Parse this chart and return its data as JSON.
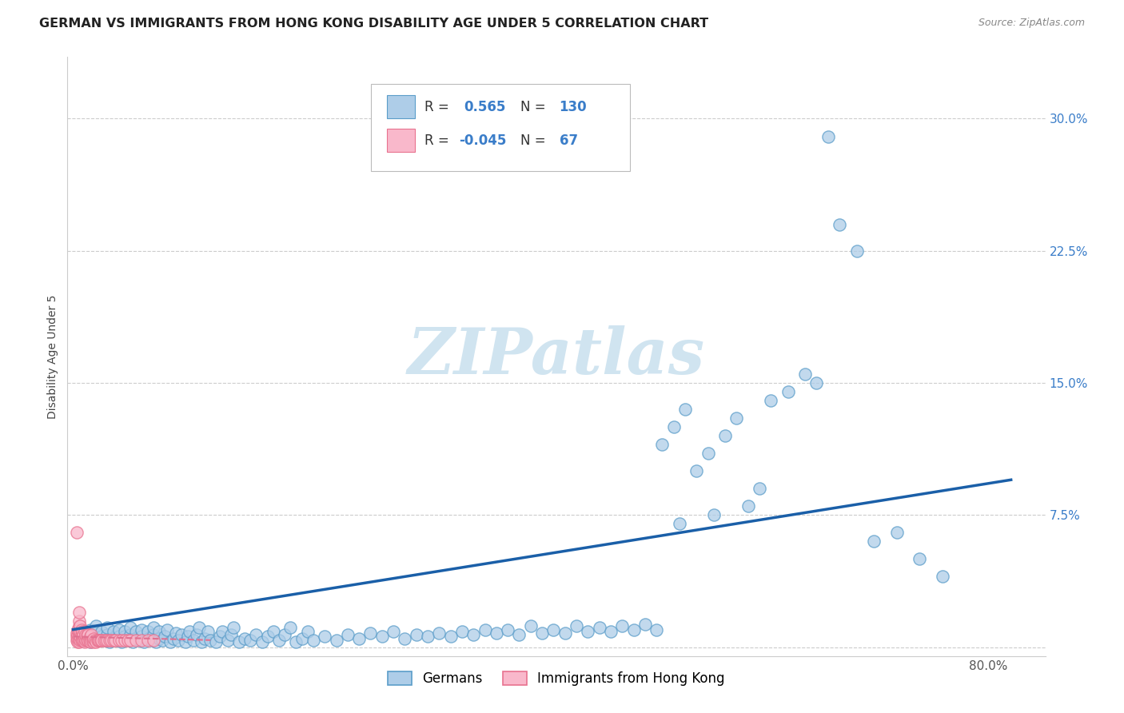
{
  "title": "GERMAN VS IMMIGRANTS FROM HONG KONG DISABILITY AGE UNDER 5 CORRELATION CHART",
  "source": "Source: ZipAtlas.com",
  "ylabel": "Disability Age Under 5",
  "xlim": [
    -0.005,
    0.85
  ],
  "ylim": [
    -0.005,
    0.335
  ],
  "grid_color": "#cccccc",
  "background_color": "#ffffff",
  "plot_bg_color": "#ffffff",
  "blue_face_color": "#aecde8",
  "blue_edge_color": "#5b9dc9",
  "pink_face_color": "#f9b8cb",
  "pink_edge_color": "#e8728f",
  "blue_line_color": "#1a5fa8",
  "pink_line_color": "#e07090",
  "R_blue": 0.565,
  "N_blue": 130,
  "R_pink": -0.045,
  "N_pink": 67,
  "legend_labels": [
    "Germans",
    "Immigrants from Hong Kong"
  ],
  "watermark_color": "#d0e4f0",
  "title_fontsize": 11.5,
  "axis_label_fontsize": 10,
  "tick_fontsize": 11,
  "source_fontsize": 9,
  "blue_scatter_x": [
    0.005,
    0.008,
    0.01,
    0.012,
    0.015,
    0.015,
    0.018,
    0.02,
    0.02,
    0.022,
    0.025,
    0.025,
    0.028,
    0.03,
    0.03,
    0.032,
    0.035,
    0.035,
    0.038,
    0.04,
    0.04,
    0.042,
    0.045,
    0.045,
    0.048,
    0.05,
    0.05,
    0.052,
    0.055,
    0.055,
    0.058,
    0.06,
    0.06,
    0.062,
    0.065,
    0.065,
    0.068,
    0.07,
    0.07,
    0.072,
    0.075,
    0.075,
    0.078,
    0.08,
    0.082,
    0.085,
    0.088,
    0.09,
    0.092,
    0.095,
    0.098,
    0.1,
    0.102,
    0.105,
    0.108,
    0.11,
    0.112,
    0.115,
    0.118,
    0.12,
    0.125,
    0.128,
    0.13,
    0.135,
    0.138,
    0.14,
    0.145,
    0.15,
    0.155,
    0.16,
    0.165,
    0.17,
    0.175,
    0.18,
    0.185,
    0.19,
    0.195,
    0.2,
    0.205,
    0.21,
    0.22,
    0.23,
    0.24,
    0.25,
    0.26,
    0.27,
    0.28,
    0.29,
    0.3,
    0.31,
    0.32,
    0.33,
    0.34,
    0.35,
    0.36,
    0.37,
    0.38,
    0.39,
    0.4,
    0.41,
    0.42,
    0.43,
    0.44,
    0.45,
    0.46,
    0.47,
    0.48,
    0.49,
    0.5,
    0.51,
    0.515,
    0.525,
    0.535,
    0.545,
    0.555,
    0.57,
    0.58,
    0.59,
    0.6,
    0.61,
    0.625,
    0.64,
    0.65,
    0.66,
    0.67,
    0.685,
    0.7,
    0.72,
    0.74,
    0.76,
    0.53,
    0.56
  ],
  "blue_scatter_y": [
    0.005,
    0.008,
    0.004,
    0.007,
    0.003,
    0.01,
    0.005,
    0.008,
    0.012,
    0.004,
    0.006,
    0.009,
    0.004,
    0.007,
    0.011,
    0.003,
    0.005,
    0.009,
    0.004,
    0.006,
    0.01,
    0.003,
    0.006,
    0.009,
    0.004,
    0.007,
    0.011,
    0.003,
    0.005,
    0.009,
    0.004,
    0.006,
    0.01,
    0.003,
    0.005,
    0.009,
    0.004,
    0.007,
    0.011,
    0.003,
    0.005,
    0.009,
    0.004,
    0.006,
    0.01,
    0.003,
    0.005,
    0.008,
    0.004,
    0.007,
    0.003,
    0.006,
    0.009,
    0.004,
    0.007,
    0.011,
    0.003,
    0.005,
    0.009,
    0.004,
    0.003,
    0.006,
    0.009,
    0.004,
    0.007,
    0.011,
    0.003,
    0.005,
    0.004,
    0.007,
    0.003,
    0.006,
    0.009,
    0.004,
    0.007,
    0.011,
    0.003,
    0.005,
    0.009,
    0.004,
    0.006,
    0.004,
    0.007,
    0.005,
    0.008,
    0.006,
    0.009,
    0.005,
    0.007,
    0.006,
    0.008,
    0.006,
    0.009,
    0.007,
    0.01,
    0.008,
    0.01,
    0.007,
    0.012,
    0.008,
    0.01,
    0.008,
    0.012,
    0.009,
    0.011,
    0.009,
    0.012,
    0.01,
    0.013,
    0.01,
    0.115,
    0.125,
    0.135,
    0.1,
    0.11,
    0.12,
    0.13,
    0.08,
    0.09,
    0.14,
    0.145,
    0.155,
    0.15,
    0.29,
    0.24,
    0.225,
    0.06,
    0.065,
    0.05,
    0.04,
    0.07,
    0.075
  ],
  "pink_scatter_x": [
    0.003,
    0.003,
    0.003,
    0.004,
    0.004,
    0.004,
    0.004,
    0.005,
    0.005,
    0.005,
    0.005,
    0.005,
    0.005,
    0.005,
    0.006,
    0.006,
    0.006,
    0.006,
    0.007,
    0.007,
    0.007,
    0.008,
    0.008,
    0.008,
    0.009,
    0.009,
    0.01,
    0.01,
    0.01,
    0.011,
    0.011,
    0.012,
    0.012,
    0.013,
    0.013,
    0.014,
    0.015,
    0.015,
    0.016,
    0.016,
    0.017,
    0.018,
    0.018,
    0.019,
    0.02,
    0.021,
    0.022,
    0.023,
    0.024,
    0.025,
    0.027,
    0.028,
    0.03,
    0.032,
    0.033,
    0.035,
    0.037,
    0.04,
    0.042,
    0.045,
    0.048,
    0.05,
    0.055,
    0.06,
    0.065,
    0.07,
    0.003
  ],
  "pink_scatter_y": [
    0.004,
    0.006,
    0.008,
    0.003,
    0.005,
    0.007,
    0.01,
    0.003,
    0.005,
    0.007,
    0.009,
    0.012,
    0.015,
    0.02,
    0.004,
    0.006,
    0.009,
    0.012,
    0.004,
    0.007,
    0.01,
    0.004,
    0.006,
    0.009,
    0.004,
    0.007,
    0.003,
    0.005,
    0.009,
    0.004,
    0.007,
    0.004,
    0.007,
    0.004,
    0.007,
    0.004,
    0.003,
    0.006,
    0.004,
    0.007,
    0.004,
    0.003,
    0.005,
    0.004,
    0.003,
    0.004,
    0.004,
    0.004,
    0.004,
    0.004,
    0.004,
    0.004,
    0.004,
    0.004,
    0.004,
    0.004,
    0.004,
    0.004,
    0.004,
    0.004,
    0.004,
    0.004,
    0.004,
    0.004,
    0.004,
    0.004,
    0.065
  ]
}
